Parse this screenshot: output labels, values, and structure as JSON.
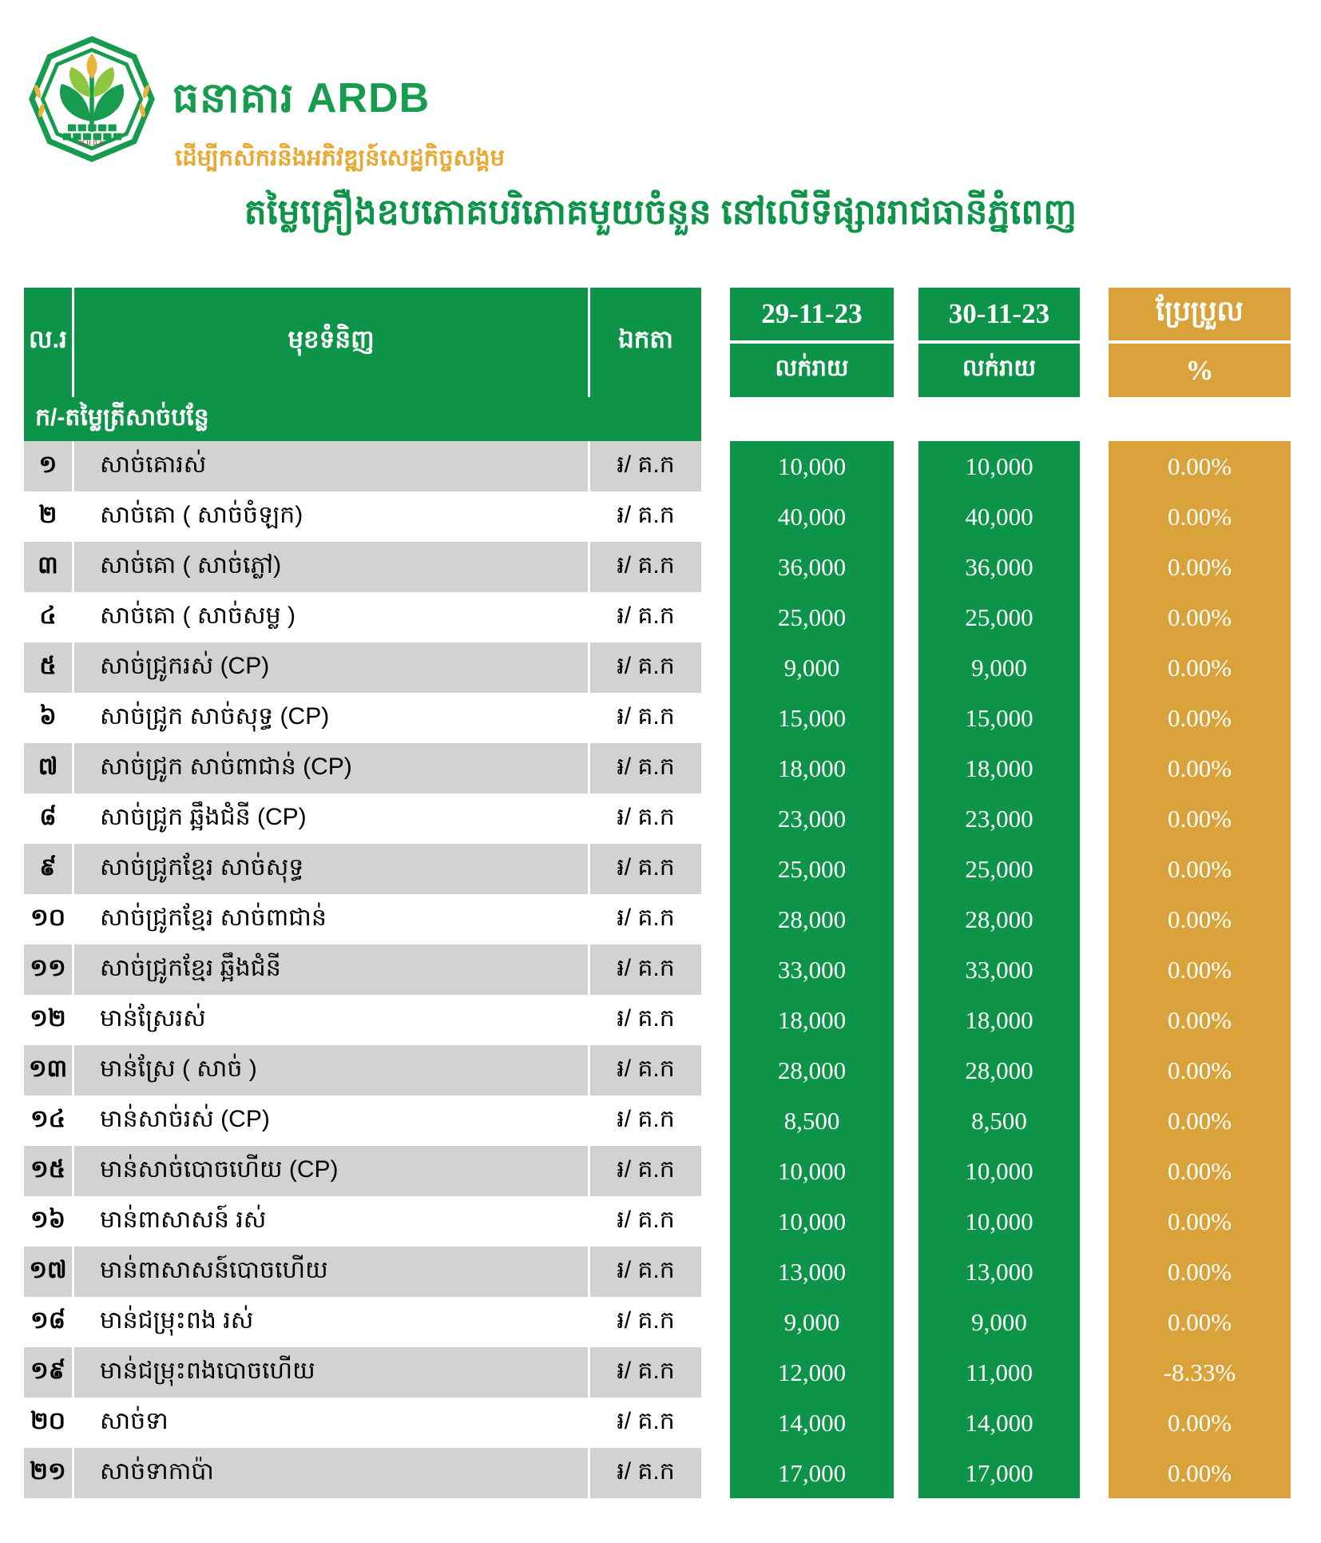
{
  "logo": {
    "bank_name": "ធនាគារ ARDB",
    "tagline": "ដើម្បីកសិករនិងអភិវឌ្ឍន៍សេដ្ឋកិច្ចសង្គម",
    "emblem_caption": "ធ.អ.ជ.ក",
    "icon": "ardb-plant-emblem"
  },
  "title": "តម្លៃគ្រឿងឧបភោគបរិភោគមួយចំនួន នៅលើទីផ្សាររាជធានីភ្នំពេញ",
  "colors": {
    "green": "#0E9449",
    "orange": "#D9A23B",
    "row_gray": "#D2D2D2",
    "gold_text": "#E8A832",
    "logo_green": "#169B4F",
    "logo_light_green": "#8DC63F",
    "logo_gold": "#E8B43C",
    "logo_red": "#C4242B"
  },
  "table": {
    "headers": {
      "no": "ល.រ",
      "item": "មុខទំនិញ",
      "unit": "ឯកតា",
      "date1": "29-11-23",
      "date2": "30-11-23",
      "retail1": "លក់រាយ",
      "retail2": "លក់រាយ",
      "change": "ប្រែប្រួល",
      "percent": "%"
    },
    "section": "ក/-តម្លៃត្រីសាច់បន្លែ",
    "rows": [
      {
        "no": "១",
        "item": "សាច់គោរស់",
        "unit": "៛/ គ.ក",
        "price1": "10,000",
        "price2": "10,000",
        "change": "0.00%"
      },
      {
        "no": "២",
        "item": "សាច់គោ ( សាច់ចំឡក)",
        "unit": "៛/ គ.ក",
        "price1": "40,000",
        "price2": "40,000",
        "change": "0.00%"
      },
      {
        "no": "៣",
        "item": "សាច់គោ ( សាច់ភ្លៅ)",
        "unit": "៛/ គ.ក",
        "price1": "36,000",
        "price2": "36,000",
        "change": "0.00%"
      },
      {
        "no": "៤",
        "item": "សាច់គោ ( សាច់សម្ល )",
        "unit": "៛/ គ.ក",
        "price1": "25,000",
        "price2": "25,000",
        "change": "0.00%"
      },
      {
        "no": "៥",
        "item": "សាច់ជ្រូករស់ (CP)",
        "unit": "៛/ គ.ក",
        "price1": "9,000",
        "price2": "9,000",
        "change": "0.00%"
      },
      {
        "no": "៦",
        "item": "សាច់ជ្រូក សាច់សុទ្ធ (CP)",
        "unit": "៛/ គ.ក",
        "price1": "15,000",
        "price2": "15,000",
        "change": "0.00%"
      },
      {
        "no": "៧",
        "item": "សាច់ជ្រូក សាច់ពាជាន់ (CP)",
        "unit": "៛/ គ.ក",
        "price1": "18,000",
        "price2": "18,000",
        "change": "0.00%"
      },
      {
        "no": "៨",
        "item": "សាច់ជ្រូក ឆ្អឹងជំនី (CP)",
        "unit": "៛/ គ.ក",
        "price1": "23,000",
        "price2": "23,000",
        "change": "0.00%"
      },
      {
        "no": "៩",
        "item": "សាច់ជ្រូកខ្មែរ សាច់សុទ្ធ",
        "unit": "៛/ គ.ក",
        "price1": "25,000",
        "price2": "25,000",
        "change": "0.00%"
      },
      {
        "no": "១០",
        "item": "សាច់ជ្រូកខ្មែរ សាច់ពាជាន់",
        "unit": "៛/ គ.ក",
        "price1": "28,000",
        "price2": "28,000",
        "change": "0.00%"
      },
      {
        "no": "១១",
        "item": "សាច់ជ្រូកខ្មែរ ឆ្អឹងជំនី",
        "unit": "៛/ គ.ក",
        "price1": "33,000",
        "price2": "33,000",
        "change": "0.00%"
      },
      {
        "no": "១២",
        "item": "មាន់ស្រែរស់",
        "unit": "៛/ គ.ក",
        "price1": "18,000",
        "price2": "18,000",
        "change": "0.00%"
      },
      {
        "no": "១៣",
        "item": "មាន់ស្រែ ( សាច់ )",
        "unit": "៛/ គ.ក",
        "price1": "28,000",
        "price2": "28,000",
        "change": "0.00%"
      },
      {
        "no": "១៤",
        "item": "មាន់សាច់រស់ (CP)",
        "unit": "៛/ គ.ក",
        "price1": "8,500",
        "price2": "8,500",
        "change": "0.00%"
      },
      {
        "no": "១៥",
        "item": "មាន់សាច់បោចហើយ (CP)",
        "unit": "៛/ គ.ក",
        "price1": "10,000",
        "price2": "10,000",
        "change": "0.00%"
      },
      {
        "no": "១៦",
        "item": "មាន់ពាសាសន៍ រស់",
        "unit": "៛/ គ.ក",
        "price1": "10,000",
        "price2": "10,000",
        "change": "0.00%"
      },
      {
        "no": "១៧",
        "item": "មាន់ពាសាសន៍បោចហើយ",
        "unit": "៛/ គ.ក",
        "price1": "13,000",
        "price2": "13,000",
        "change": "0.00%"
      },
      {
        "no": "១៨",
        "item": "មាន់ជម្រុះពង រស់",
        "unit": "៛/ គ.ក",
        "price1": "9,000",
        "price2": "9,000",
        "change": "0.00%"
      },
      {
        "no": "១៩",
        "item": "មាន់ជម្រុះពងបោចហើយ",
        "unit": "៛/ គ.ក",
        "price1": "12,000",
        "price2": "11,000",
        "change": "-8.33%"
      },
      {
        "no": "២០",
        "item": "សាច់ទា",
        "unit": "៛/ គ.ក",
        "price1": "14,000",
        "price2": "14,000",
        "change": "0.00%"
      },
      {
        "no": "២១",
        "item": "សាច់ទាកាប៉ា",
        "unit": "៛/ គ.ក",
        "price1": "17,000",
        "price2": "17,000",
        "change": "0.00%"
      }
    ]
  }
}
